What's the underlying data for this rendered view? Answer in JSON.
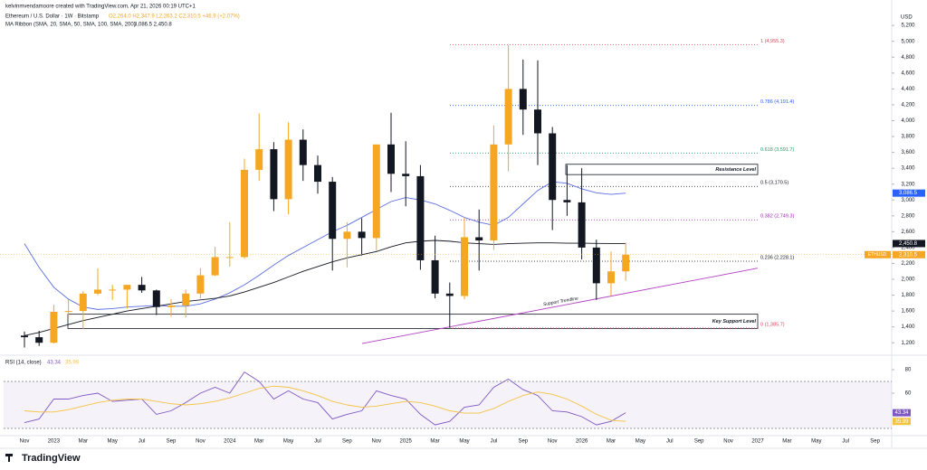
{
  "header": {
    "author": "kelvinmvendamoore created with TradingView.com, Apr 21, 2026 00:19 UTC+1",
    "symbol": "Ethereum / U.S. Dollar · 1W · Bitstamp",
    "ohlc": "O2,264.0 H2,347.9 L2,263.2 C2,310.5 +46.9 (+2.07%)",
    "indicator": "MA Ribbon (SMA, 20, SMA, 50, SMA, 100, SMA, 200)",
    "indicator_values": "3,086.5  2,450.8",
    "currency": "USD",
    "logo": "TradingView"
  },
  "chart_data": [
    {
      "type": "candlestick",
      "categories": [
        "Nov",
        null,
        "2023",
        null,
        "Mar",
        null,
        "May",
        null,
        "Jul",
        null,
        "Sep",
        null,
        "Nov",
        null,
        "2024",
        null,
        "Mar",
        null,
        "May",
        null,
        "Jul",
        null,
        "Sep",
        null,
        "Nov",
        null,
        "2025",
        null,
        "Mar",
        null,
        "May",
        null,
        "Jul",
        null,
        "Sep",
        null,
        "Nov",
        null,
        "2026",
        null,
        "Mar",
        null,
        "May",
        null,
        "Jul",
        null,
        "Sep",
        null,
        "Nov",
        null,
        "2027",
        null,
        "Mar",
        null,
        "May",
        null,
        "Jul",
        null,
        "Sep"
      ],
      "open": [
        1290,
        1270,
        1200,
        1590,
        1600,
        1820,
        1870,
        1870,
        1930,
        1860,
        1650,
        1670,
        1820,
        2050,
        2280,
        2280,
        3380,
        3640,
        3010,
        3760,
        3440,
        3230,
        2510,
        2600,
        2520,
        3700,
        3330,
        3300,
        2240,
        1820,
        1790,
        2530,
        2490,
        3700,
        4400,
        4140,
        3840,
        3000,
        2970,
        2400,
        1950,
        2100,
        null,
        null,
        null,
        null,
        null,
        null,
        null,
        null,
        null,
        null,
        null,
        null,
        null,
        null,
        null,
        null,
        null
      ],
      "high": [
        1340,
        1350,
        1680,
        1740,
        1850,
        2140,
        1930,
        1930,
        2030,
        1870,
        1750,
        1870,
        2140,
        2410,
        2720,
        3520,
        4090,
        3730,
        3980,
        3890,
        3560,
        3290,
        2720,
        2770,
        3680,
        4100,
        3740,
        3440,
        2550,
        1960,
        2780,
        2880,
        3940,
        4950,
        4770,
        4760,
        3920,
        3440,
        3400,
        2500,
        2350,
        2460,
        null,
        null,
        null,
        null,
        null,
        null,
        null,
        null,
        null,
        null,
        null,
        null,
        null,
        null,
        null,
        null,
        null
      ],
      "low": [
        1140,
        1160,
        1190,
        1480,
        1370,
        1800,
        1740,
        1630,
        1830,
        1550,
        1530,
        1520,
        1760,
        2040,
        2160,
        2260,
        3240,
        2860,
        2820,
        3240,
        3080,
        2110,
        2150,
        2300,
        2360,
        3100,
        2920,
        2120,
        1760,
        1390,
        1750,
        2110,
        2370,
        3360,
        3820,
        3440,
        2620,
        2800,
        2250,
        1740,
        1790,
        1980,
        null,
        null,
        null,
        null,
        null,
        null,
        null,
        null,
        null,
        null,
        null,
        null,
        null,
        null,
        null,
        null,
        null
      ],
      "close": [
        1270,
        1200,
        1590,
        1600,
        1820,
        1870,
        1870,
        1930,
        1860,
        1650,
        1670,
        1820,
        2050,
        2280,
        2280,
        3380,
        3640,
        3010,
        3760,
        3440,
        3230,
        2510,
        2600,
        2520,
        3700,
        3330,
        3300,
        2240,
        1820,
        1790,
        2530,
        2490,
        3700,
        4400,
        4140,
        3840,
        3000,
        2970,
        2400,
        1950,
        2100,
        2310.5,
        null,
        null,
        null,
        null,
        null,
        null,
        null,
        null,
        null,
        null,
        null,
        null,
        null,
        null,
        null,
        null,
        null
      ],
      "up_color": "#f5a623",
      "down_color": "#131722",
      "overlays": [
        {
          "color": "#5b6ee1",
          "values": [
            2450,
            2150,
            1900,
            1750,
            1650,
            1620,
            1630,
            1650,
            1660,
            1670,
            1660,
            1660,
            1690,
            1750,
            1830,
            1930,
            2050,
            2180,
            2300,
            2400,
            2500,
            2600,
            2680,
            2780,
            2880,
            2980,
            3030,
            3000,
            2950,
            2870,
            2780,
            2720,
            2680,
            2780,
            2950,
            3120,
            3230,
            3210,
            3140,
            3090,
            3070,
            3086.5,
            null,
            null,
            null,
            null,
            null,
            null,
            null,
            null,
            null,
            null,
            null,
            null,
            null,
            null,
            null,
            null,
            null
          ]
        },
        {
          "color": "#131722",
          "values": [
            1290,
            1330,
            1380,
            1430,
            1480,
            1520,
            1560,
            1600,
            1630,
            1660,
            1690,
            1720,
            1740,
            1760,
            1790,
            1840,
            1900,
            1960,
            2030,
            2100,
            2160,
            2220,
            2270,
            2310,
            2350,
            2410,
            2460,
            2480,
            2490,
            2480,
            2460,
            2450,
            2440,
            2450,
            2455,
            2460,
            2460,
            2455,
            2455,
            2452,
            2451,
            2450.8,
            null,
            null,
            null,
            null,
            null,
            null,
            null,
            null,
            null,
            null,
            null,
            null,
            null,
            null,
            null,
            null,
            null
          ]
        }
      ],
      "fib_levels": [
        {
          "value": 4955.3,
          "label": "1 (4,955.3)",
          "color": "#e0455a"
        },
        {
          "value": 4191.4,
          "label": "0.786 (4,191.4)",
          "color": "#2962ff"
        },
        {
          "value": 3591.7,
          "label": "0.618 (3,591.7)",
          "color": "#1e9e6a"
        },
        {
          "value": 3170.5,
          "label": "0.5 (3,170.5)",
          "color": "#131722"
        },
        {
          "value": 2749.3,
          "label": "0.382 (2,749.3)",
          "color": "#9c27b0"
        },
        {
          "value": 2228.1,
          "label": "0.236 (2,228.1)",
          "color": "#131722"
        },
        {
          "value": 1385.7,
          "label": "0 (1,385.7)",
          "color": "#e0455a"
        }
      ],
      "zones": [
        {
          "label": "Resistance Level",
          "low": 3320,
          "high": 3450
        },
        {
          "label": "Key Support Level",
          "low": 1380,
          "high": 1560
        }
      ],
      "trendline": {
        "label": "Support Trendline",
        "start": 1190,
        "end": 2140,
        "color": "#b040c0"
      },
      "badges": [
        {
          "value": 3086.5,
          "label": "3,086.5",
          "color": "#2962ff"
        },
        {
          "value": 2450.8,
          "label": "2,450.8",
          "color": "#131722"
        },
        {
          "value": 2310.5,
          "label": "2,310.5",
          "color": "#f5a623",
          "symbol": "ETHUSD"
        }
      ],
      "ylim": [
        1100,
        5350
      ],
      "yticks": [
        {
          "value": 1200,
          "label": "1,200"
        },
        {
          "value": 1400,
          "label": "1,400"
        },
        {
          "value": 1600,
          "label": "1,600"
        },
        {
          "value": 1800,
          "label": "1,800"
        },
        {
          "value": 2000,
          "label": "2,000"
        },
        {
          "value": 2200,
          "label": "2,200"
        },
        {
          "value": 2400,
          "label": "2,400"
        },
        {
          "value": 2600,
          "label": "2,600"
        },
        {
          "value": 2800,
          "label": "2,800"
        },
        {
          "value": 3000,
          "label": "3,000"
        },
        {
          "value": 3200,
          "label": "3,200"
        },
        {
          "value": 3400,
          "label": "3,400"
        },
        {
          "value": 3600,
          "label": "3,600"
        },
        {
          "value": 3800,
          "label": "3,800"
        },
        {
          "value": 4000,
          "label": "4,000"
        },
        {
          "value": 4200,
          "label": "4,200"
        },
        {
          "value": 4400,
          "label": "4,400"
        },
        {
          "value": 4600,
          "label": "4,600"
        },
        {
          "value": 4800,
          "label": "4,800"
        },
        {
          "value": 5000,
          "label": "5,000"
        },
        {
          "value": 5200,
          "label": "5,200"
        }
      ]
    },
    {
      "type": "line",
      "title": "RSI (14, close)",
      "series": [
        {
          "color": "#7e57c2",
          "values": [
            35,
            38,
            55,
            55,
            58,
            60,
            53,
            54,
            55,
            42,
            45,
            52,
            60,
            65,
            60,
            78,
            70,
            55,
            62,
            55,
            52,
            38,
            42,
            45,
            62,
            58,
            55,
            42,
            33,
            36,
            48,
            50,
            65,
            72,
            63,
            58,
            45,
            44,
            40,
            33,
            36,
            43.34,
            null,
            null,
            null,
            null,
            null,
            null,
            null,
            null,
            null,
            null,
            null,
            null,
            null,
            null,
            null,
            null,
            null
          ]
        },
        {
          "color": "#f5c242",
          "values": [
            45,
            44,
            44,
            46,
            49,
            52,
            54,
            55,
            55,
            53,
            51,
            50,
            51,
            53,
            56,
            60,
            64,
            66,
            65,
            62,
            58,
            53,
            50,
            48,
            49,
            51,
            53,
            52,
            49,
            45,
            43,
            43,
            47,
            53,
            58,
            61,
            59,
            55,
            49,
            42,
            37,
            35.99,
            null,
            null,
            null,
            null,
            null,
            null,
            null,
            null,
            null,
            null,
            null,
            null,
            null,
            null,
            null,
            null,
            null
          ]
        }
      ],
      "ylim": [
        20,
        90
      ],
      "yticks": [
        80,
        60
      ]
    }
  ]
}
